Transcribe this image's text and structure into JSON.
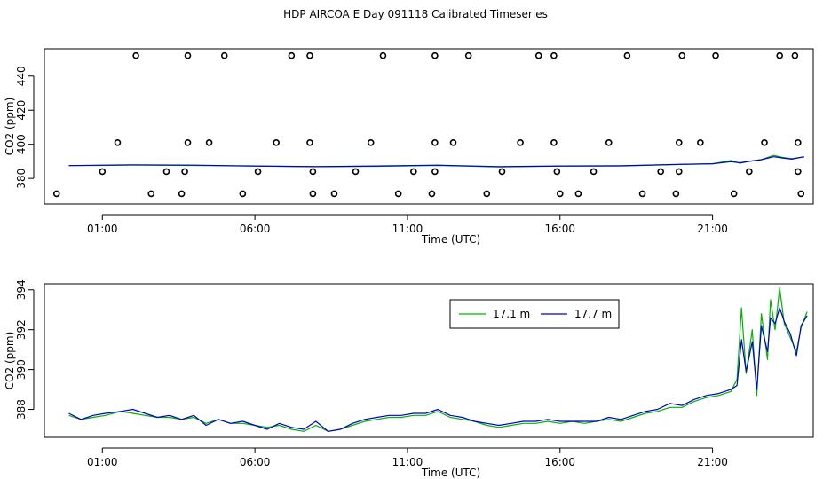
{
  "title": "HDP AIRCOA E  Day 091118  Calibrated Timeseries",
  "colors": {
    "green": "#00b300",
    "blue": "#0000cc",
    "axis": "#000000"
  },
  "chart_data": [
    {
      "type": "scatter",
      "xlabel": "Time (UTC)",
      "ylabel": "CO2 (ppm)",
      "xlim": [
        -0.9,
        24.3
      ],
      "ylim": [
        365,
        456
      ],
      "x_ticks": [
        1,
        6,
        11,
        16,
        21
      ],
      "x_tick_labels": [
        "01:00",
        "06:00",
        "11:00",
        "16:00",
        "21:00"
      ],
      "y_ticks": [
        380,
        400,
        420,
        440
      ],
      "y_tick_labels": [
        "380",
        "400",
        "420",
        "440"
      ],
      "series": [
        {
          "marker": "circle",
          "points": [
            [
              -0.5,
              371
            ],
            [
              1.0,
              384
            ],
            [
              1.5,
              401
            ],
            [
              2.1,
              452
            ],
            [
              2.6,
              371
            ],
            [
              3.1,
              384
            ],
            [
              3.6,
              371
            ],
            [
              3.7,
              384
            ],
            [
              3.8,
              401
            ],
            [
              3.8,
              452
            ],
            [
              4.5,
              401
            ],
            [
              5.0,
              452
            ],
            [
              5.6,
              371
            ],
            [
              6.1,
              384
            ],
            [
              6.7,
              401
            ],
            [
              7.2,
              452
            ],
            [
              7.8,
              452
            ],
            [
              7.8,
              401
            ],
            [
              7.9,
              371
            ],
            [
              7.9,
              384
            ],
            [
              8.6,
              371
            ],
            [
              9.3,
              384
            ],
            [
              9.8,
              401
            ],
            [
              10.2,
              452
            ],
            [
              10.7,
              371
            ],
            [
              11.2,
              384
            ],
            [
              11.8,
              371
            ],
            [
              11.9,
              384
            ],
            [
              11.9,
              401
            ],
            [
              11.9,
              452
            ],
            [
              12.5,
              401
            ],
            [
              13.0,
              452
            ],
            [
              13.6,
              371
            ],
            [
              14.1,
              384
            ],
            [
              14.7,
              401
            ],
            [
              15.3,
              452
            ],
            [
              15.8,
              452
            ],
            [
              15.8,
              401
            ],
            [
              15.9,
              384
            ],
            [
              16.0,
              371
            ],
            [
              16.6,
              371
            ],
            [
              17.1,
              384
            ],
            [
              17.6,
              401
            ],
            [
              18.2,
              452
            ],
            [
              18.7,
              371
            ],
            [
              19.3,
              384
            ],
            [
              19.8,
              371
            ],
            [
              19.9,
              384
            ],
            [
              19.9,
              401
            ],
            [
              20.0,
              452
            ],
            [
              20.6,
              401
            ],
            [
              21.1,
              452
            ],
            [
              21.7,
              371
            ],
            [
              22.2,
              384
            ],
            [
              22.7,
              401
            ],
            [
              23.2,
              452
            ],
            [
              23.7,
              452
            ],
            [
              23.8,
              401
            ],
            [
              23.8,
              384
            ],
            [
              23.9,
              371
            ]
          ]
        },
        {
          "name": "17.1 m",
          "color": "green",
          "points": [
            [
              -0.1,
              387.5
            ],
            [
              2,
              387.8
            ],
            [
              4,
              387.6
            ],
            [
              6,
              387.2
            ],
            [
              8,
              386.9
            ],
            [
              10,
              387.1
            ],
            [
              12,
              387.6
            ],
            [
              14,
              386.8
            ],
            [
              16,
              387.2
            ],
            [
              18,
              387.3
            ],
            [
              20,
              388.2
            ],
            [
              21,
              388.6
            ],
            [
              21.6,
              390.5
            ],
            [
              21.9,
              388.9
            ],
            [
              22.2,
              390
            ],
            [
              22.6,
              391
            ],
            [
              23.0,
              393.5
            ],
            [
              23.3,
              392.3
            ],
            [
              23.6,
              391.6
            ],
            [
              24.0,
              392.6
            ]
          ]
        },
        {
          "name": "17.7 m",
          "color": "blue",
          "points": [
            [
              -0.1,
              387.5
            ],
            [
              2,
              388
            ],
            [
              4,
              387.8
            ],
            [
              6,
              387.3
            ],
            [
              8,
              386.9
            ],
            [
              10,
              387.3
            ],
            [
              12,
              387.8
            ],
            [
              14,
              386.9
            ],
            [
              16,
              387.3
            ],
            [
              18,
              387.4
            ],
            [
              20,
              388.3
            ],
            [
              21,
              388.6
            ],
            [
              21.6,
              389.8
            ],
            [
              21.9,
              389.2
            ],
            [
              22.2,
              390
            ],
            [
              22.6,
              391
            ],
            [
              23.0,
              392.7
            ],
            [
              23.3,
              392.0
            ],
            [
              23.6,
              391.3
            ],
            [
              24.0,
              392.7
            ]
          ]
        }
      ]
    },
    {
      "type": "line",
      "xlabel": "Time (UTC)",
      "ylabel": "CO2 (ppm)",
      "xlim": [
        -0.9,
        24.3
      ],
      "ylim": [
        386.6,
        394.3
      ],
      "x_ticks": [
        1,
        6,
        11,
        16,
        21
      ],
      "x_tick_labels": [
        "01:00",
        "06:00",
        "11:00",
        "16:00",
        "21:00"
      ],
      "y_ticks": [
        388,
        390,
        392,
        394
      ],
      "y_tick_labels": [
        "388",
        "390",
        "392",
        "394"
      ],
      "legend_position": "top-center",
      "series": [
        {
          "name": "17.1 m",
          "color": "green",
          "points": [
            [
              -0.1,
              387.7
            ],
            [
              0.3,
              387.5
            ],
            [
              0.7,
              387.6
            ],
            [
              1.1,
              387.7
            ],
            [
              1.6,
              387.9
            ],
            [
              2.0,
              387.8
            ],
            [
              2.4,
              387.7
            ],
            [
              2.8,
              387.6
            ],
            [
              3.2,
              387.6
            ],
            [
              3.6,
              387.5
            ],
            [
              4.0,
              387.6
            ],
            [
              4.4,
              387.3
            ],
            [
              4.8,
              387.5
            ],
            [
              5.2,
              387.3
            ],
            [
              5.6,
              387.3
            ],
            [
              6.0,
              387.2
            ],
            [
              6.4,
              387.1
            ],
            [
              6.8,
              387.2
            ],
            [
              7.2,
              387.0
            ],
            [
              7.6,
              386.9
            ],
            [
              8.0,
              387.2
            ],
            [
              8.4,
              386.9
            ],
            [
              8.8,
              387.0
            ],
            [
              9.2,
              387.2
            ],
            [
              9.6,
              387.4
            ],
            [
              10.0,
              387.5
            ],
            [
              10.4,
              387.6
            ],
            [
              10.8,
              387.6
            ],
            [
              11.2,
              387.7
            ],
            [
              11.6,
              387.7
            ],
            [
              12.0,
              387.9
            ],
            [
              12.4,
              387.6
            ],
            [
              12.8,
              387.5
            ],
            [
              13.2,
              387.4
            ],
            [
              13.6,
              387.2
            ],
            [
              14.0,
              387.1
            ],
            [
              14.4,
              387.2
            ],
            [
              14.8,
              387.3
            ],
            [
              15.2,
              387.3
            ],
            [
              15.6,
              387.4
            ],
            [
              16.0,
              387.3
            ],
            [
              16.4,
              387.4
            ],
            [
              16.8,
              387.3
            ],
            [
              17.2,
              387.4
            ],
            [
              17.6,
              387.5
            ],
            [
              18.0,
              387.4
            ],
            [
              18.4,
              387.6
            ],
            [
              18.8,
              387.8
            ],
            [
              19.2,
              387.9
            ],
            [
              19.6,
              388.1
            ],
            [
              20.0,
              388.1
            ],
            [
              20.4,
              388.4
            ],
            [
              20.8,
              388.6
            ],
            [
              21.2,
              388.7
            ],
            [
              21.6,
              388.9
            ],
            [
              21.8,
              389.5
            ],
            [
              21.95,
              393.1
            ],
            [
              22.1,
              389.8
            ],
            [
              22.3,
              392.0
            ],
            [
              22.45,
              388.7
            ],
            [
              22.6,
              392.8
            ],
            [
              22.8,
              390.5
            ],
            [
              22.9,
              393.5
            ],
            [
              23.05,
              392.0
            ],
            [
              23.2,
              394.1
            ],
            [
              23.35,
              392.3
            ],
            [
              23.55,
              391.6
            ],
            [
              23.75,
              390.9
            ],
            [
              23.9,
              392.1
            ],
            [
              24.1,
              392.9
            ]
          ]
        },
        {
          "name": "17.7 m",
          "color": "blue",
          "points": [
            [
              -0.1,
              387.8
            ],
            [
              0.3,
              387.5
            ],
            [
              0.7,
              387.7
            ],
            [
              1.1,
              387.8
            ],
            [
              1.6,
              387.9
            ],
            [
              2.0,
              388.0
            ],
            [
              2.4,
              387.8
            ],
            [
              2.8,
              387.6
            ],
            [
              3.2,
              387.7
            ],
            [
              3.6,
              387.5
            ],
            [
              4.0,
              387.7
            ],
            [
              4.4,
              387.2
            ],
            [
              4.8,
              387.5
            ],
            [
              5.2,
              387.3
            ],
            [
              5.6,
              387.4
            ],
            [
              6.0,
              387.2
            ],
            [
              6.4,
              387.0
            ],
            [
              6.8,
              387.3
            ],
            [
              7.2,
              387.1
            ],
            [
              7.6,
              387.0
            ],
            [
              8.0,
              387.4
            ],
            [
              8.4,
              386.9
            ],
            [
              8.8,
              387.0
            ],
            [
              9.2,
              387.3
            ],
            [
              9.6,
              387.5
            ],
            [
              10.0,
              387.6
            ],
            [
              10.4,
              387.7
            ],
            [
              10.8,
              387.7
            ],
            [
              11.2,
              387.8
            ],
            [
              11.6,
              387.8
            ],
            [
              12.0,
              388.0
            ],
            [
              12.4,
              387.7
            ],
            [
              12.8,
              387.6
            ],
            [
              13.2,
              387.4
            ],
            [
              13.6,
              387.3
            ],
            [
              14.0,
              387.2
            ],
            [
              14.4,
              387.3
            ],
            [
              14.8,
              387.4
            ],
            [
              15.2,
              387.4
            ],
            [
              15.6,
              387.5
            ],
            [
              16.0,
              387.4
            ],
            [
              16.4,
              387.4
            ],
            [
              16.8,
              387.4
            ],
            [
              17.2,
              387.4
            ],
            [
              17.6,
              387.6
            ],
            [
              18.0,
              387.5
            ],
            [
              18.4,
              387.7
            ],
            [
              18.8,
              387.9
            ],
            [
              19.2,
              388.0
            ],
            [
              19.6,
              388.3
            ],
            [
              20.0,
              388.2
            ],
            [
              20.4,
              388.5
            ],
            [
              20.8,
              388.7
            ],
            [
              21.2,
              388.8
            ],
            [
              21.6,
              389.0
            ],
            [
              21.8,
              389.2
            ],
            [
              21.95,
              391.5
            ],
            [
              22.1,
              389.9
            ],
            [
              22.3,
              391.4
            ],
            [
              22.45,
              389.0
            ],
            [
              22.6,
              392.2
            ],
            [
              22.8,
              390.9
            ],
            [
              22.9,
              392.6
            ],
            [
              23.05,
              392.3
            ],
            [
              23.2,
              393.1
            ],
            [
              23.35,
              392.4
            ],
            [
              23.55,
              391.8
            ],
            [
              23.75,
              390.7
            ],
            [
              23.9,
              392.2
            ],
            [
              24.1,
              392.7
            ]
          ]
        }
      ]
    }
  ]
}
